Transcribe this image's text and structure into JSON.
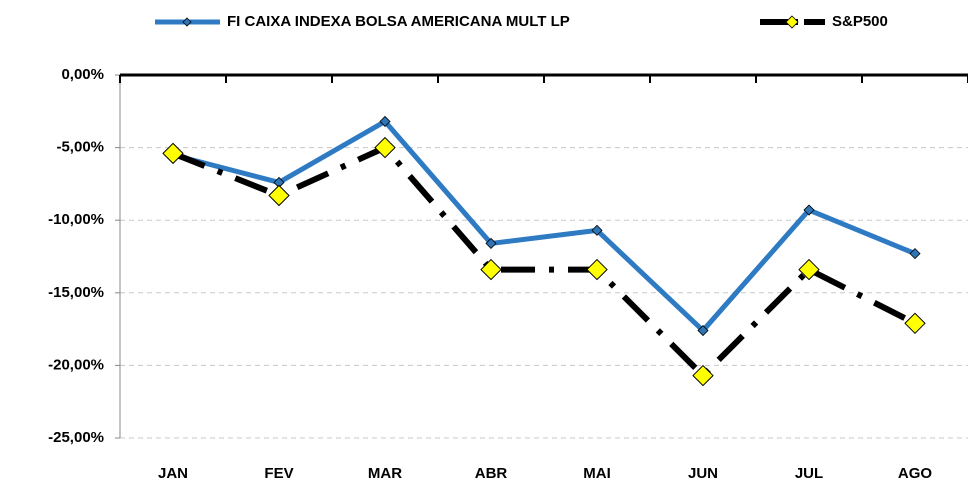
{
  "chart_data": {
    "type": "line",
    "categories": [
      "JAN",
      "FEV",
      "MAR",
      "ABR",
      "MAI",
      "JUN",
      "JUL",
      "AGO"
    ],
    "series": [
      {
        "name": "FI CAIXA INDEXA BOLSA AMERICANA MULT LP",
        "color": "#2e7bc4",
        "marker_color": "#2e75b6",
        "values": [
          -5.5,
          -7.4,
          -3.2,
          -11.6,
          -10.7,
          -17.6,
          -9.3,
          -12.3
        ]
      },
      {
        "name": "S&P500",
        "color": "#000000",
        "marker_color": "#ffff00",
        "values": [
          -5.4,
          -8.3,
          -5.0,
          -13.4,
          -13.4,
          -20.7,
          -13.4,
          -17.1
        ]
      }
    ],
    "ylim": [
      -25,
      0
    ],
    "yticks": [
      {
        "value": 0,
        "label": "0,00%"
      },
      {
        "value": -5,
        "label": "-5,00%"
      },
      {
        "value": -10,
        "label": "-10,00%"
      },
      {
        "value": -15,
        "label": "-15,00%"
      },
      {
        "value": -20,
        "label": "-20,00%"
      },
      {
        "value": -25,
        "label": "-25,00%"
      }
    ],
    "grid": true,
    "legend": "top"
  }
}
